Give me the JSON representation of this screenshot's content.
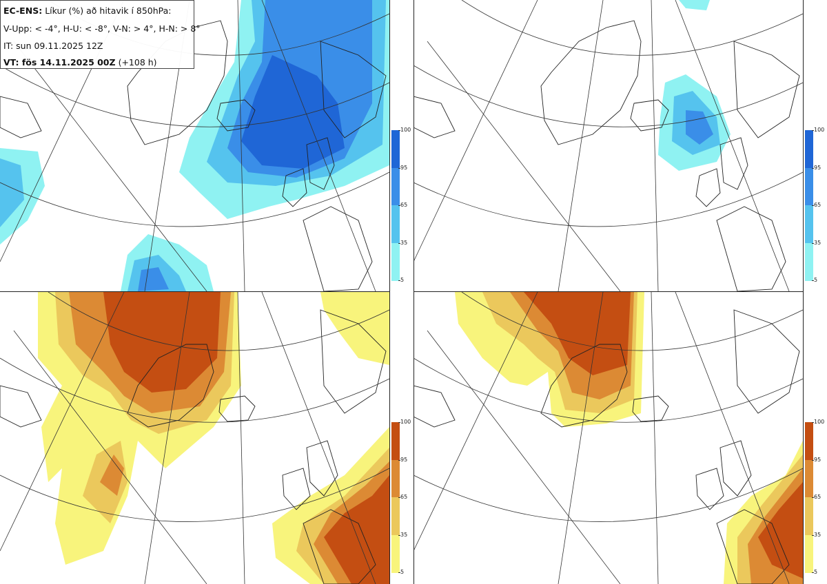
{
  "info": {
    "model": "EC-ENS:",
    "title": "Líkur (%) að hitavik í 850hPa:",
    "legend_line": "V-Upp: < -4°, H-U: < -8°, V-N: > 4°, H-N: > 8°",
    "init_time": "IT: sun 09.11.2025 12Z",
    "valid_prefix": "VT: fös 14.11.2025 00Z",
    "lead": "(+108 h)"
  },
  "colorbar": {
    "ticks": [
      "100",
      "95",
      "65",
      "35",
      "5"
    ],
    "cold_colors": [
      "#1f66d6",
      "#3a8ee8",
      "#55c3ee",
      "#8ff2f2"
    ],
    "warm_colors": [
      "#c44e12",
      "#dc8a34",
      "#ebc85c",
      "#f8f47c"
    ]
  },
  "panels": [
    {
      "id": "upper-left",
      "variable": "cold anomaly < -4°"
    },
    {
      "id": "upper-right",
      "variable": "cold anomaly < -8°"
    },
    {
      "id": "lower-left",
      "variable": "warm anomaly > 4°"
    },
    {
      "id": "lower-right",
      "variable": "warm anomaly > 8°"
    }
  ]
}
